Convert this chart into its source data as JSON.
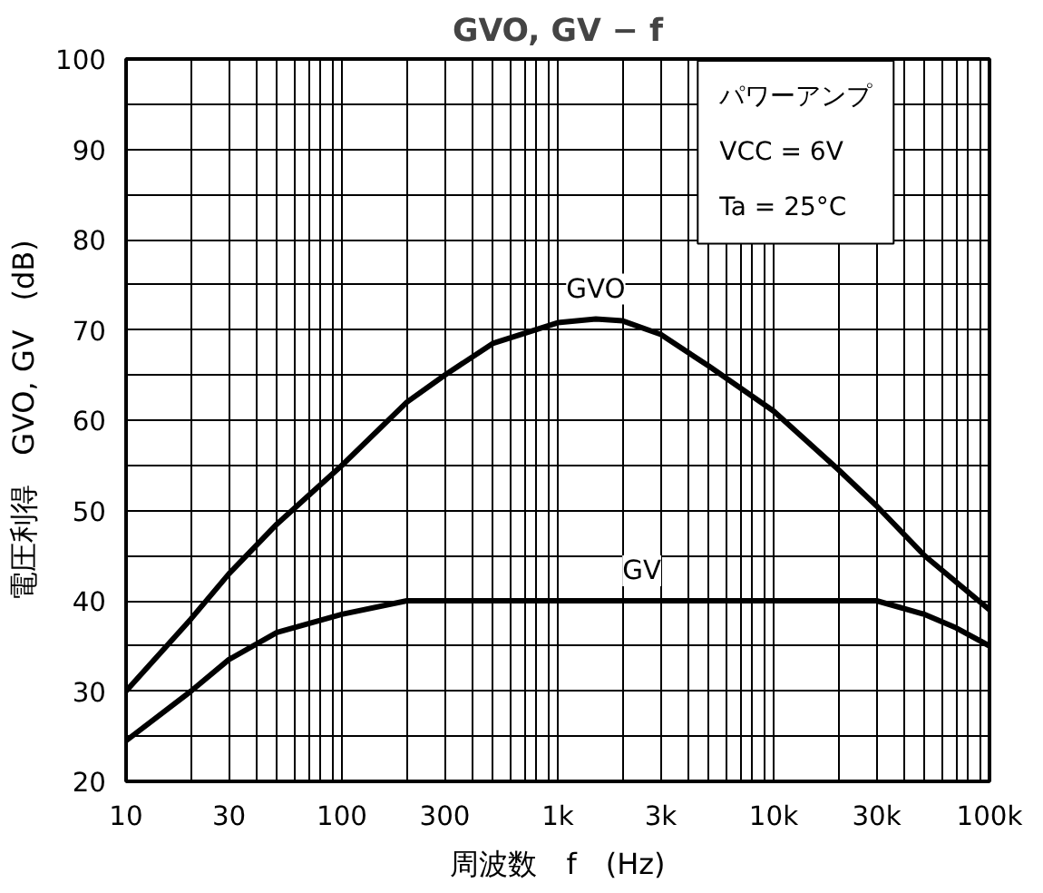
{
  "chart_data": {
    "type": "line",
    "title": "GVO, GV − f",
    "xlabel": "周波数　f　(Hz)",
    "ylabel": "電圧利得　GVO, GV　(dB)",
    "log": "x",
    "grid": true,
    "marker": "none",
    "line_style": "solid",
    "xlim": [
      10,
      100000
    ],
    "ylim": [
      20,
      100
    ],
    "xticks": [
      10,
      {
        "value": 20,
        "label": null
      },
      30,
      {
        "value": 40,
        "label": null
      },
      {
        "value": 50,
        "label": null
      },
      {
        "value": 60,
        "label": null
      },
      {
        "value": 70,
        "label": null
      },
      {
        "value": 80,
        "label": null
      },
      {
        "value": 90,
        "label": null
      },
      100,
      {
        "value": 200,
        "label": null
      },
      300,
      {
        "value": 400,
        "label": null
      },
      {
        "value": 500,
        "label": null
      },
      {
        "value": 600,
        "label": null
      },
      {
        "value": 700,
        "label": null
      },
      {
        "value": 800,
        "label": null
      },
      {
        "value": 900,
        "label": null
      },
      {
        "value": 1000,
        "label": "1k"
      },
      {
        "value": 2000,
        "label": null
      },
      {
        "value": 3000,
        "label": "3k"
      },
      {
        "value": 4000,
        "label": null
      },
      {
        "value": 5000,
        "label": null
      },
      {
        "value": 6000,
        "label": null
      },
      {
        "value": 7000,
        "label": null
      },
      {
        "value": 8000,
        "label": null
      },
      {
        "value": 9000,
        "label": null
      },
      {
        "value": 10000,
        "label": "10k"
      },
      {
        "value": 20000,
        "label": null
      },
      {
        "value": 30000,
        "label": "30k"
      },
      {
        "value": 40000,
        "label": null
      },
      {
        "value": 50000,
        "label": null
      },
      {
        "value": 60000,
        "label": null
      },
      {
        "value": 70000,
        "label": null
      },
      {
        "value": 80000,
        "label": null
      },
      {
        "value": 90000,
        "label": null
      },
      {
        "value": 100000,
        "label": "100k"
      }
    ],
    "yticks": [
      20,
      {
        "value": 25,
        "label": null
      },
      30,
      {
        "value": 35,
        "label": null
      },
      40,
      {
        "value": 45,
        "label": null
      },
      50,
      {
        "value": 55,
        "label": null
      },
      60,
      {
        "value": 65,
        "label": null
      },
      70,
      {
        "value": 75,
        "label": null
      },
      80,
      {
        "value": 85,
        "label": null
      },
      90,
      {
        "value": 95,
        "label": null
      },
      100
    ],
    "annotations": [
      "パワーアンプ",
      "VCC = 6V",
      "Ta = 25°C"
    ],
    "series": [
      {
        "name": "GVO",
        "color": "#000000",
        "x": [
          10,
          20,
          30,
          50,
          100,
          200,
          300,
          500,
          1000,
          1500,
          2000,
          3000,
          5000,
          10000,
          20000,
          30000,
          50000,
          100000
        ],
        "values": [
          30,
          38,
          43,
          48.5,
          55,
          62,
          65,
          68.5,
          70.8,
          71.2,
          71,
          69.5,
          66,
          61,
          54.5,
          50.5,
          45,
          39
        ]
      },
      {
        "name": "GV",
        "color": "#000000",
        "x": [
          10,
          20,
          30,
          50,
          100,
          200,
          1000,
          10000,
          30000,
          50000,
          70000,
          100000
        ],
        "values": [
          24.5,
          30,
          33.5,
          36.5,
          38.5,
          40,
          40,
          40,
          40,
          38.5,
          37,
          35
        ]
      }
    ]
  }
}
